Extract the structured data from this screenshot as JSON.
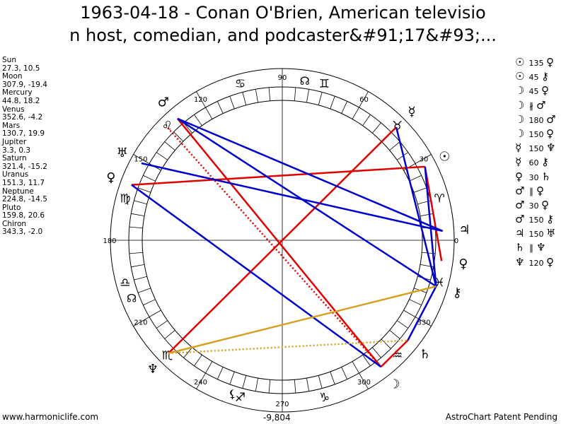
{
  "title": {
    "line1": "1963-04-18 - Conan O'Brien, American televisio",
    "line2": "n host, comedian, and podcaster&#91;17&#93;..."
  },
  "planets": [
    {
      "name": "Sun",
      "coords": "27.3, 10.5",
      "glyph": "☉",
      "lon": 27.3
    },
    {
      "name": "Moon",
      "coords": "307.9, -19.4",
      "glyph": "☽",
      "lon": 307.9
    },
    {
      "name": "Mercury",
      "coords": "44.8, 18.2",
      "glyph": "☿",
      "lon": 44.8
    },
    {
      "name": "Venus",
      "coords": "352.6, -4.2",
      "glyph": "♀",
      "lon": 352.6
    },
    {
      "name": "Mars",
      "coords": "130.7, 19.9",
      "glyph": "♂",
      "lon": 130.7
    },
    {
      "name": "Jupiter",
      "coords": "3.3, 0.3",
      "glyph": "♃",
      "lon": 3.3
    },
    {
      "name": "Saturn",
      "coords": "321.4, -15.2",
      "glyph": "♄",
      "lon": 321.4
    },
    {
      "name": "Uranus",
      "coords": "151.3, 11.7",
      "glyph": "♅",
      "lon": 151.3
    },
    {
      "name": "Neptune",
      "coords": "224.8, -14.5",
      "glyph": "♆",
      "lon": 224.8
    },
    {
      "name": "Pluto",
      "coords": "159.8, 20.6",
      "glyph": "♀",
      "lon": 159.8
    },
    {
      "name": "Chiron",
      "coords": "343.3, -2.0",
      "glyph": "⚷",
      "lon": 343.3
    }
  ],
  "aspects_list": [
    {
      "p1": "☉",
      "sym": "",
      "angle": "135",
      "p2": "♀"
    },
    {
      "p1": "☉",
      "sym": "",
      "angle": "45",
      "p2": "⚷"
    },
    {
      "p1": "☽",
      "sym": "",
      "angle": "45",
      "p2": "♀"
    },
    {
      "p1": "☽",
      "sym": "∦",
      "angle": "",
      "p2": "♂"
    },
    {
      "p1": "☽",
      "sym": "",
      "angle": "180",
      "p2": "♂"
    },
    {
      "p1": "☽",
      "sym": "",
      "angle": "150",
      "p2": "♀"
    },
    {
      "p1": "☿",
      "sym": "",
      "angle": "150",
      "p2": "♆"
    },
    {
      "p1": "☿",
      "sym": "",
      "angle": "60",
      "p2": "⚷"
    },
    {
      "p1": "♀",
      "sym": "",
      "angle": "30",
      "p2": "♄"
    },
    {
      "p1": "♂",
      "sym": "∥",
      "angle": "",
      "p2": "♀"
    },
    {
      "p1": "♂",
      "sym": "",
      "angle": "30",
      "p2": "♀"
    },
    {
      "p1": "♂",
      "sym": "",
      "angle": "150",
      "p2": "⚷"
    },
    {
      "p1": "♃",
      "sym": "",
      "angle": "150",
      "p2": "♅"
    },
    {
      "p1": "♄",
      "sym": "∥",
      "angle": "",
      "p2": "♆"
    },
    {
      "p1": "♆",
      "sym": "",
      "angle": "120",
      "p2": "♀"
    }
  ],
  "wheel": {
    "degree_labels": [
      {
        "text": "0",
        "deg": 0
      },
      {
        "text": "30",
        "deg": 30
      },
      {
        "text": "60",
        "deg": 60
      },
      {
        "text": "90",
        "deg": 90
      },
      {
        "text": "120",
        "deg": 120
      },
      {
        "text": "150",
        "deg": 150
      },
      {
        "text": "180",
        "deg": 180
      },
      {
        "text": "210",
        "deg": 210
      },
      {
        "text": "240",
        "deg": 240
      },
      {
        "text": "270",
        "deg": 270
      },
      {
        "text": "300",
        "deg": 300
      },
      {
        "text": "330",
        "deg": 330
      }
    ],
    "signs": [
      {
        "glyph": "♈",
        "deg": 15
      },
      {
        "glyph": "♉",
        "deg": 45
      },
      {
        "glyph": "♊",
        "deg": 75
      },
      {
        "glyph": "♋",
        "deg": 105
      },
      {
        "glyph": "♌",
        "deg": 135
      },
      {
        "glyph": "♍",
        "deg": 165
      },
      {
        "glyph": "♎",
        "deg": 195
      },
      {
        "glyph": "♏",
        "deg": 225
      },
      {
        "glyph": "♐",
        "deg": 255
      },
      {
        "glyph": "♑",
        "deg": 285
      },
      {
        "glyph": "♒",
        "deg": 315
      },
      {
        "glyph": "♓",
        "deg": 345
      }
    ],
    "aspect_lines": [
      {
        "from": 130.7,
        "to": 307.9,
        "color": "#e00000",
        "dotted": false
      },
      {
        "from": 135.5,
        "to": 307.9,
        "color": "#e00000",
        "dotted": true
      },
      {
        "from": 44.8,
        "to": 224.8,
        "color": "#e00000",
        "dotted": false
      },
      {
        "from": 159.8,
        "to": 27.3,
        "color": "#e00000",
        "dotted": false
      },
      {
        "from": 27.3,
        "to": 352.6,
        "color": "#e00000",
        "dotted": false
      },
      {
        "from": 321.4,
        "to": 307.9,
        "color": "#e00000",
        "dotted": false
      },
      {
        "from": 130.7,
        "to": 3.3,
        "color": "#0000cc",
        "dotted": false
      },
      {
        "from": 130.7,
        "to": 343.3,
        "color": "#0000cc",
        "dotted": false
      },
      {
        "from": 151.3,
        "to": 3.3,
        "color": "#0000cc",
        "dotted": false
      },
      {
        "from": 159.8,
        "to": 307.9,
        "color": "#0000cc",
        "dotted": false
      },
      {
        "from": 44.8,
        "to": 343.3,
        "color": "#0000cc",
        "dotted": false
      },
      {
        "from": 27.3,
        "to": 343.3,
        "color": "#0000cc",
        "dotted": false
      },
      {
        "from": 343.3,
        "to": 321.4,
        "color": "#0000cc",
        "dotted": false
      },
      {
        "from": 224.8,
        "to": 343.3,
        "color": "#d4a020",
        "dotted": false
      },
      {
        "from": 224.8,
        "to": 321.4,
        "color": "#d4a020",
        "dotted": true
      }
    ],
    "extra_glyphs": [
      {
        "glyph": "☊",
        "deg": 82
      },
      {
        "glyph": "☊",
        "deg": 201
      },
      {
        "glyph": "⚸",
        "deg": 252
      }
    ]
  },
  "footer": {
    "site": "www.harmoniclife.com",
    "value": "-9,804",
    "note": "AstroChart Patent Pending"
  }
}
